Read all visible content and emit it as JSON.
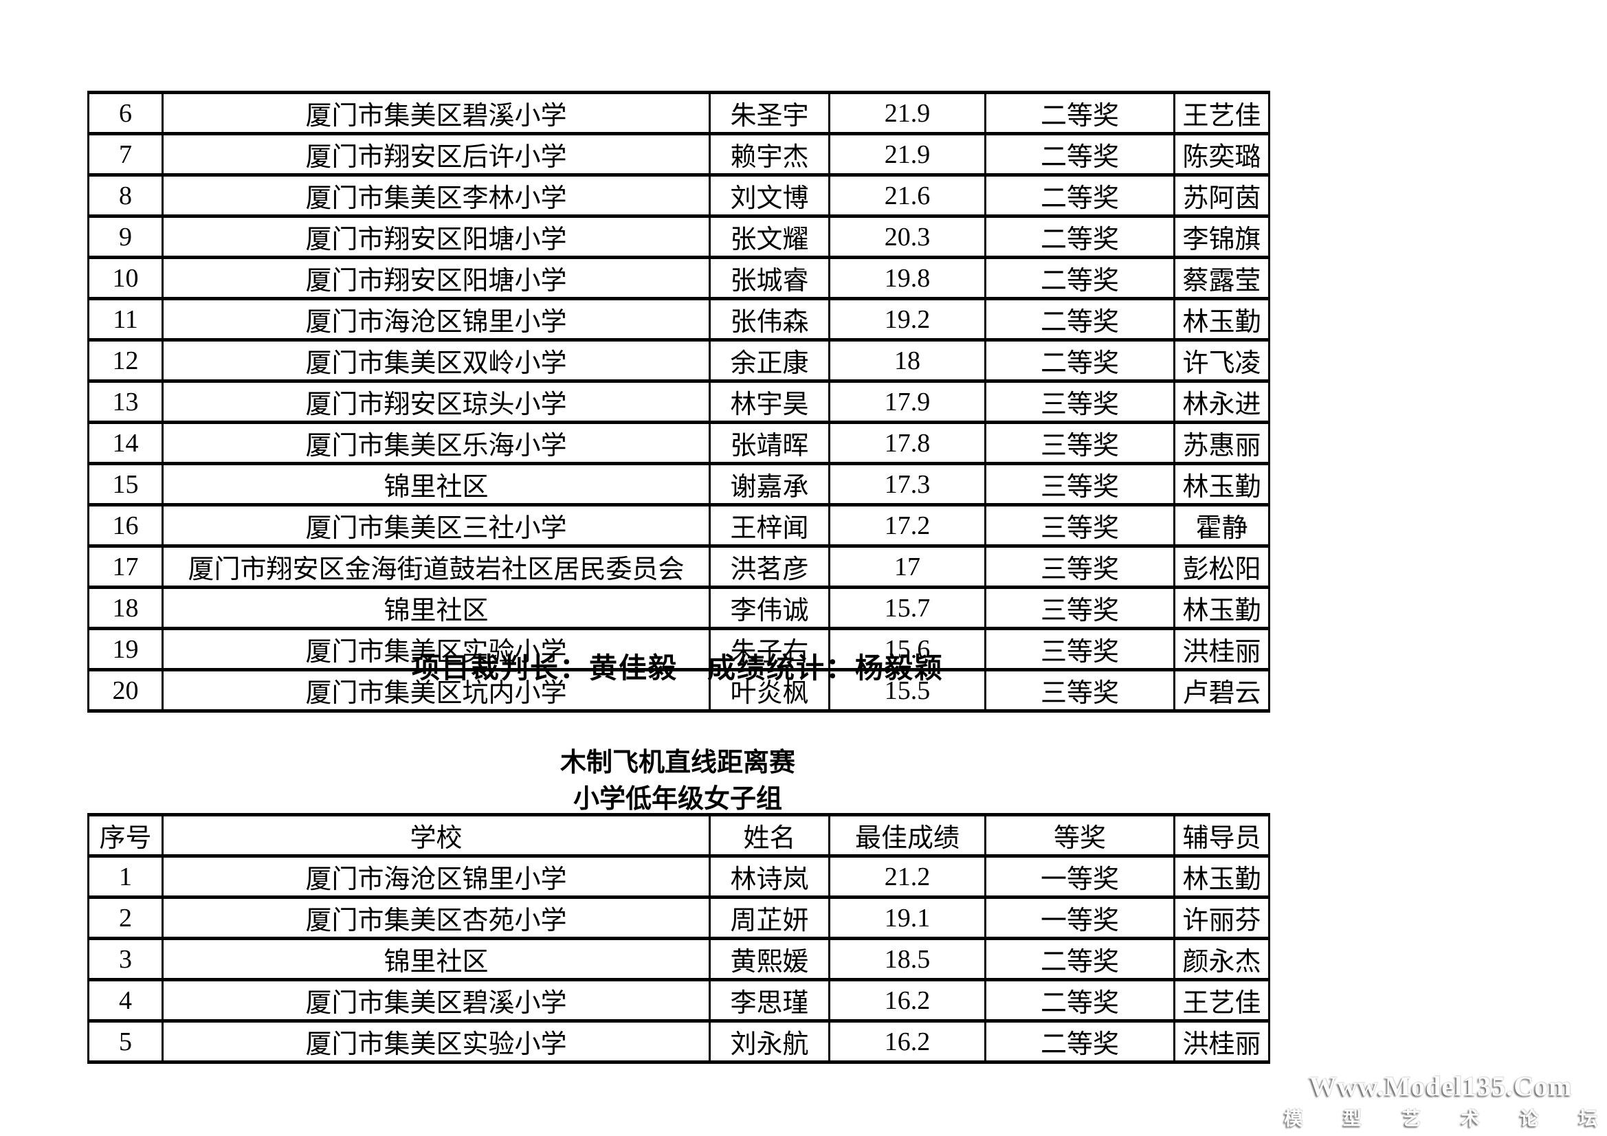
{
  "table1": {
    "rows": [
      {
        "no": "6",
        "school": "厦门市集美区碧溪小学",
        "name": "朱圣宇",
        "score": "21.9",
        "award": "二等奖",
        "coach": "王艺佳"
      },
      {
        "no": "7",
        "school": "厦门市翔安区后许小学",
        "name": "赖宇杰",
        "score": "21.9",
        "award": "二等奖",
        "coach": "陈奕璐"
      },
      {
        "no": "8",
        "school": "厦门市集美区李林小学",
        "name": "刘文博",
        "score": "21.6",
        "award": "二等奖",
        "coach": "苏阿茵"
      },
      {
        "no": "9",
        "school": "厦门市翔安区阳塘小学",
        "name": "张文耀",
        "score": "20.3",
        "score_small": true,
        "award": "二等奖",
        "coach": "李锦旗"
      },
      {
        "no": "10",
        "school": "厦门市翔安区阳塘小学",
        "name": "张城睿",
        "score": "19.8",
        "award": "二等奖",
        "coach": "蔡露莹"
      },
      {
        "no": "11",
        "school": "厦门市海沧区锦里小学",
        "name": "张伟森",
        "score": "19.2",
        "award": "二等奖",
        "coach": "林玉勤"
      },
      {
        "no": "12",
        "school": "厦门市集美区双岭小学",
        "name": "余正康",
        "score": "18",
        "award": "二等奖",
        "coach": "许飞凌"
      },
      {
        "no": "13",
        "school": "厦门市翔安区琼头小学",
        "name": "林宇昊",
        "score": "17.9",
        "award": "三等奖",
        "coach": "林永进"
      },
      {
        "no": "14",
        "school": "厦门市集美区乐海小学",
        "name": "张靖晖",
        "score": "17.8",
        "award": "三等奖",
        "coach": "苏惠丽"
      },
      {
        "no": "15",
        "school": "锦里社区",
        "name": "谢嘉承",
        "score": "17.3",
        "award": "三等奖",
        "coach": "林玉勤"
      },
      {
        "no": "16",
        "school": "厦门市集美区三社小学",
        "name": "王梓闻",
        "score": "17.2",
        "award": "三等奖",
        "coach": "霍静"
      },
      {
        "no": "17",
        "school": "厦门市翔安区金海街道鼓岩社区居民委员会",
        "name": "洪茗彦",
        "score": "17",
        "award": "三等奖",
        "coach": "彭松阳"
      },
      {
        "no": "18",
        "school": "锦里社区",
        "name": "李伟诚",
        "score": "15.7",
        "award": "三等奖",
        "coach": "林玉勤"
      },
      {
        "no": "19",
        "school": "厦门市集美区实验小学",
        "name": "朱子右",
        "score": "15.6",
        "award": "三等奖",
        "coach": "洪桂丽"
      },
      {
        "no": "20",
        "school": "厦门市集美区坑内小学",
        "name": "叶炎枫",
        "score": "15.5",
        "award": "三等奖",
        "coach": "卢碧云"
      }
    ],
    "judge_line": "项目裁判长：黄佳毅　成绩统计：杨毅颖"
  },
  "section2": {
    "title": "木制飞机直线距离赛",
    "subtitle": "小学低年级女子组",
    "table": {
      "headers": {
        "no": "序号",
        "school": "学校",
        "name": "姓名",
        "score": "最佳成绩",
        "award": "等奖",
        "coach": "辅导员"
      },
      "rows": [
        {
          "no": "1",
          "school": "厦门市海沧区锦里小学",
          "name": "林诗岚",
          "score": "21.2",
          "award": "一等奖",
          "coach": "林玉勤"
        },
        {
          "no": "2",
          "school": "厦门市集美区杏苑小学",
          "name": "周芷妍",
          "score": "19.1",
          "award": "一等奖",
          "coach": "许丽芬"
        },
        {
          "no": "3",
          "school": "锦里社区",
          "name": "黄熙媛",
          "score": "18.5",
          "award": "二等奖",
          "coach": "颜永杰"
        },
        {
          "no": "4",
          "school": "厦门市集美区碧溪小学",
          "name": "李思瑾",
          "score": "16.2",
          "award": "二等奖",
          "coach": "王艺佳"
        },
        {
          "no": "5",
          "school": "厦门市集美区实验小学",
          "name": "刘永航",
          "score": "16.2",
          "award": "二等奖",
          "coach": "洪桂丽"
        }
      ]
    }
  },
  "watermark": {
    "line1": "Www.Model135.Com",
    "line2": "模 型 艺 术 论 坛"
  }
}
